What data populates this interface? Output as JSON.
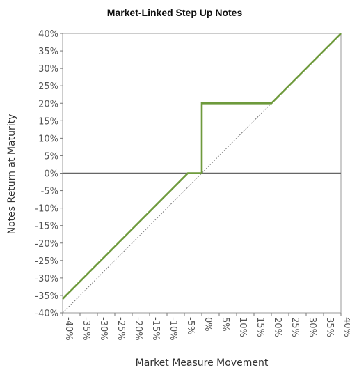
{
  "chart_data": {
    "type": "line",
    "title": "Market-Linked Step Up Notes",
    "xlabel": "Market Measure Movement",
    "ylabel": "Notes Return at Maturity",
    "xlim": [
      -40,
      40
    ],
    "ylim": [
      -40,
      40
    ],
    "x_ticks": [
      "-40%",
      "-35%",
      "-30%",
      "-25%",
      "-20%",
      "-15%",
      "-10%",
      "-5%",
      "0%",
      "5%",
      "10%",
      "15%",
      "20%",
      "25%",
      "30%",
      "35%",
      "40%"
    ],
    "y_ticks": [
      "40%",
      "35%",
      "30%",
      "25%",
      "20%",
      "15%",
      "10%",
      "5%",
      "0%",
      "-5%",
      "-10%",
      "-15%",
      "-20%",
      "-25%",
      "-30%",
      "-35%",
      "-40%"
    ],
    "x_tick_values": [
      -40,
      -35,
      -30,
      -25,
      -20,
      -15,
      -10,
      -5,
      0,
      5,
      10,
      15,
      20,
      25,
      30,
      35,
      40
    ],
    "y_tick_values": [
      40,
      35,
      30,
      25,
      20,
      15,
      10,
      5,
      0,
      -5,
      -10,
      -15,
      -20,
      -25,
      -30,
      -35,
      -40
    ],
    "grid": false,
    "series": [
      {
        "style": "solid",
        "color": "#6e9a3c",
        "points": [
          [
            -40,
            -36
          ],
          [
            -4,
            0
          ],
          [
            0,
            0
          ],
          [
            0,
            20
          ],
          [
            20,
            20
          ],
          [
            40,
            40
          ]
        ]
      },
      {
        "style": "dotted",
        "color": "#777777",
        "points": [
          [
            -40,
            -40
          ],
          [
            40,
            40
          ]
        ]
      }
    ],
    "reference_lines": [
      {
        "axis": "y",
        "value": 0,
        "color": "#666666"
      }
    ],
    "legend": "none"
  }
}
